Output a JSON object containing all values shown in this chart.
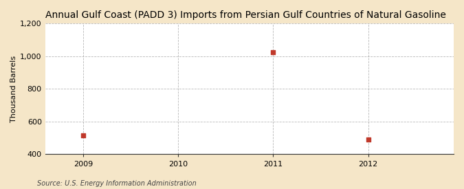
{
  "title": "Annual Gulf Coast (PADD 3) Imports from Persian Gulf Countries of Natural Gasoline",
  "ylabel": "Thousand Barrels",
  "source": "Source: U.S. Energy Information Administration",
  "x_values": [
    2009,
    2011,
    2012
  ],
  "y_values": [
    515,
    1025,
    490
  ],
  "xlim": [
    2008.6,
    2012.9
  ],
  "ylim": [
    400,
    1200
  ],
  "yticks": [
    400,
    600,
    800,
    1000,
    1200
  ],
  "ytick_labels": [
    "400",
    "600",
    "800",
    "1,000",
    "1,200"
  ],
  "xticks": [
    2009,
    2010,
    2011,
    2012
  ],
  "marker_color": "#c0392b",
  "marker_size": 4,
  "figure_bg": "#f5e6c8",
  "plot_bg": "#ffffff",
  "grid_color": "#999999",
  "title_fontsize": 10,
  "axis_fontsize": 8,
  "tick_fontsize": 8,
  "source_fontsize": 7
}
